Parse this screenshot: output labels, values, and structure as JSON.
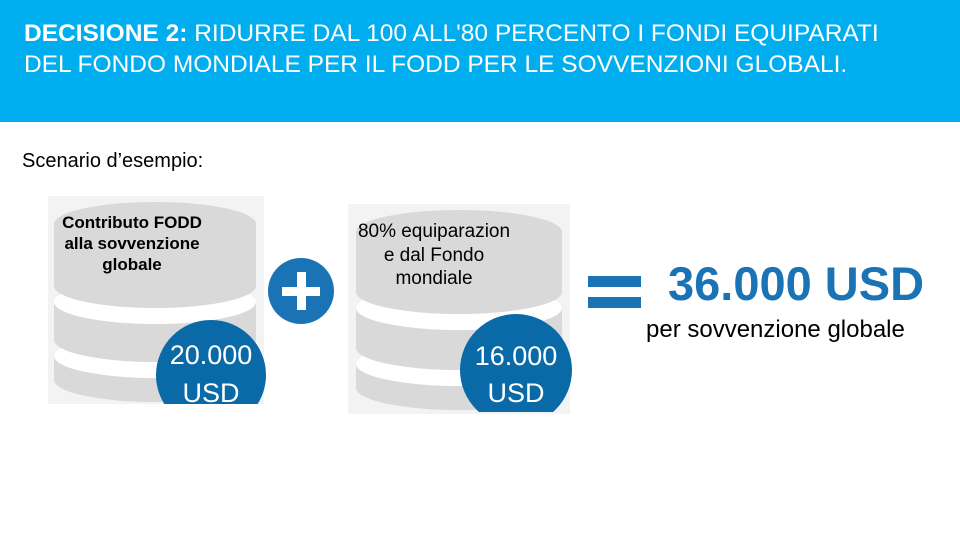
{
  "slide": {
    "title_lead": "DECISIONE 2:",
    "title_rest": "RIDURRE DAL 100 ALL'80 PERCENTO I FONDI EQUIPARATI DEL FONDO MONDIALE PER IL FODD PER LE SOVVENZIONI GLOBALI.",
    "scenario_label": "Scenario d’esempio:",
    "left_db": {
      "label": "Contributo FODD alla sovvenzione globale",
      "amount_value": "20.000",
      "amount_currency": "USD"
    },
    "plus_icon": "plus-icon",
    "right_db": {
      "label": "80% equiparazion e dal Fondo mondiale",
      "amount_value": "16.000",
      "amount_currency": "USD"
    },
    "equals_icon": "equals-icon",
    "total": "36.000 USD",
    "total_caption": "per sovvenzione globale",
    "colors": {
      "header_blue": "#00aeef",
      "accent_blue": "#1a73b5",
      "circle_blue": "#0a6aa8",
      "database_gray": "#d9d9d9"
    }
  }
}
